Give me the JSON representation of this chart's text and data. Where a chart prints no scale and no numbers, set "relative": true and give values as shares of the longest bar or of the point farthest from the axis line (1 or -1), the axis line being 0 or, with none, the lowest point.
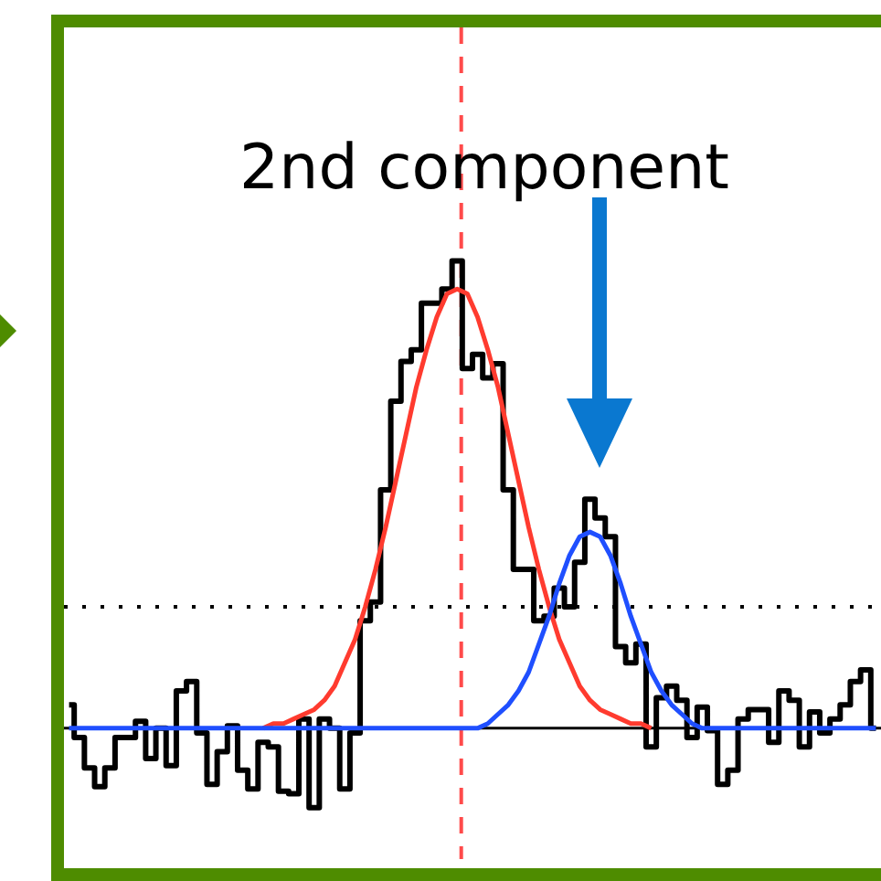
{
  "chart_data": {
    "type": "step",
    "relative": true,
    "categories": [
      null,
      null,
      null,
      null,
      null,
      null,
      null,
      null,
      null,
      null,
      null,
      null,
      null,
      null,
      null,
      null,
      null,
      null,
      null,
      null,
      null,
      null,
      null,
      null,
      null,
      null,
      null,
      null,
      null,
      null,
      null,
      null,
      null,
      null,
      null,
      null,
      null,
      null,
      null,
      null,
      null,
      null,
      null,
      null,
      null,
      null,
      null,
      null,
      null,
      null,
      null,
      null,
      null,
      null,
      null,
      null,
      null,
      null,
      null,
      null,
      null,
      null,
      null,
      null,
      null,
      null,
      null,
      null,
      null,
      null,
      null,
      null,
      null,
      null,
      null,
      null,
      null,
      null,
      null,
      null
    ],
    "annotations": [
      "2nd component"
    ],
    "ref_lines": [
      {
        "axis": "y",
        "value": 0.26,
        "color": "#000000",
        "line_style": "dotted"
      }
    ],
    "series": [
      {
        "color": "#000000",
        "values": [
          0.05,
          -0.02,
          -0.085,
          -0.125,
          -0.085,
          -0.02,
          -0.02,
          0.015,
          -0.065,
          0,
          -0.08,
          0.08,
          0.1,
          -0.01,
          -0.12,
          -0.05,
          0.005,
          -0.09,
          -0.13,
          -0.03,
          -0.04,
          -0.135,
          -0.14,
          0.02,
          -0.17,
          0.02,
          0,
          -0.13,
          -0.01,
          0.23,
          0.27,
          0.51,
          0.7,
          0.785,
          0.81,
          0.91,
          0.91,
          0.94,
          1.0,
          0.77,
          0.8,
          0.75,
          0.78,
          0.51,
          0.34,
          0.34,
          0.23,
          0.24,
          0.3,
          0.26,
          0.355,
          0.49,
          0.45,
          0.41,
          0.175,
          0.14,
          0.18,
          -0.04,
          0.065,
          0.09,
          0.06,
          -0.02,
          0.045,
          -0.005,
          -0.12,
          -0.09,
          0.02,
          0.04,
          0.04,
          -0.03,
          0.08,
          0.06,
          -0.04,
          0.035,
          -0.01,
          0.02,
          0.05,
          0.1,
          0.125,
          0
        ]
      },
      {
        "type": "line",
        "color": "#ff3b2f",
        "values": [
          null,
          null,
          null,
          null,
          null,
          null,
          null,
          null,
          null,
          null,
          null,
          null,
          null,
          null,
          null,
          null,
          null,
          null,
          null,
          0,
          0.01,
          0.01,
          0.02,
          0.03,
          0.04,
          0.06,
          0.09,
          0.14,
          0.19,
          0.26,
          0.34,
          0.43,
          0.53,
          0.63,
          0.73,
          0.81,
          0.88,
          0.93,
          0.94,
          0.93,
          0.88,
          0.81,
          0.73,
          0.63,
          0.53,
          0.43,
          0.34,
          0.26,
          0.19,
          0.14,
          0.09,
          0.06,
          0.04,
          0.03,
          0.02,
          0.01,
          0.01,
          0,
          null,
          null,
          null,
          null,
          null,
          null,
          null,
          null,
          null,
          null,
          null,
          null,
          null,
          null,
          null,
          null,
          null,
          null,
          null,
          null,
          null,
          null
        ]
      },
      {
        "type": "line",
        "color": "#1f4fff",
        "values": [
          0,
          0,
          0,
          0,
          0,
          0,
          0,
          0,
          0,
          0,
          0,
          0,
          0,
          0,
          0,
          0,
          0,
          0,
          0,
          0,
          0,
          0,
          0,
          0,
          0,
          0,
          0,
          0,
          0,
          0,
          0,
          0,
          0,
          0,
          0,
          0,
          0,
          0,
          0,
          0,
          0,
          0.01,
          0.03,
          0.05,
          0.08,
          0.12,
          0.18,
          0.24,
          0.31,
          0.37,
          0.41,
          0.42,
          0.41,
          0.37,
          0.31,
          0.24,
          0.18,
          0.12,
          0.08,
          0.05,
          0.03,
          0.01,
          0,
          0,
          0,
          0,
          0,
          0,
          0,
          0,
          0,
          0,
          0,
          0,
          0,
          0,
          0,
          0,
          0,
          0
        ]
      }
    ]
  }
}
